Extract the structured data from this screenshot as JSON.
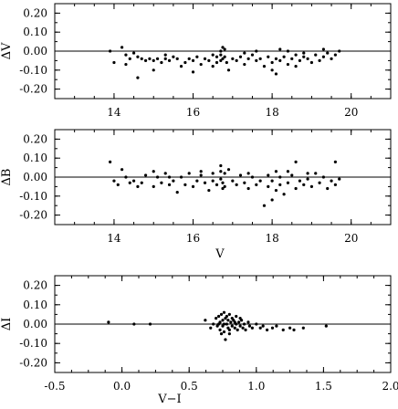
{
  "chart_data": [
    {
      "type": "scatter",
      "xlabel": "",
      "ylabel": "ΔV",
      "xlim": [
        12.5,
        21
      ],
      "ylim": [
        -0.25,
        0.25
      ],
      "xticks": [
        14,
        16,
        18,
        20
      ],
      "xtick_labels": [
        "14",
        "16",
        "18",
        "20"
      ],
      "yticks": [
        0.2,
        0.1,
        0.0,
        -0.1,
        -0.2
      ],
      "ytick_labels": [
        "0.20",
        "0.10",
        "0.00",
        "-0.10",
        "-0.20"
      ],
      "reference_line_y": 0,
      "points": [
        [
          13.9,
          0.0
        ],
        [
          14.0,
          -0.06
        ],
        [
          14.2,
          0.02
        ],
        [
          14.3,
          -0.02
        ],
        [
          14.4,
          -0.04
        ],
        [
          14.5,
          -0.01
        ],
        [
          14.6,
          -0.14
        ],
        [
          14.6,
          -0.03
        ],
        [
          14.7,
          -0.04
        ],
        [
          14.8,
          -0.05
        ],
        [
          14.9,
          -0.04
        ],
        [
          15.0,
          -0.1
        ],
        [
          15.0,
          -0.05
        ],
        [
          15.1,
          -0.04
        ],
        [
          15.2,
          -0.06
        ],
        [
          15.3,
          -0.04
        ],
        [
          15.4,
          -0.05
        ],
        [
          15.5,
          -0.03
        ],
        [
          15.6,
          -0.04
        ],
        [
          15.7,
          -0.08
        ],
        [
          15.8,
          -0.06
        ],
        [
          15.9,
          -0.04
        ],
        [
          16.0,
          -0.11
        ],
        [
          16.0,
          -0.05
        ],
        [
          16.1,
          -0.03
        ],
        [
          16.2,
          -0.07
        ],
        [
          16.3,
          -0.04
        ],
        [
          16.4,
          -0.05
        ],
        [
          16.5,
          -0.02
        ],
        [
          16.5,
          -0.08
        ],
        [
          16.6,
          -0.03
        ],
        [
          16.6,
          -0.06
        ],
        [
          16.7,
          0.0
        ],
        [
          16.7,
          -0.02
        ],
        [
          16.7,
          -0.05
        ],
        [
          16.75,
          0.02
        ],
        [
          16.75,
          -0.04
        ],
        [
          16.8,
          0.01
        ],
        [
          16.8,
          -0.03
        ],
        [
          16.85,
          -0.06
        ],
        [
          16.9,
          -0.1
        ],
        [
          17.0,
          -0.04
        ],
        [
          17.1,
          -0.05
        ],
        [
          17.2,
          -0.03
        ],
        [
          17.3,
          -0.07
        ],
        [
          17.4,
          -0.04
        ],
        [
          17.5,
          -0.02
        ],
        [
          17.6,
          -0.05
        ],
        [
          17.7,
          -0.04
        ],
        [
          17.8,
          -0.08
        ],
        [
          17.9,
          -0.03
        ],
        [
          18.0,
          -0.06
        ],
        [
          18.0,
          -0.1
        ],
        [
          18.1,
          -0.04
        ],
        [
          18.1,
          -0.12
        ],
        [
          18.2,
          -0.05
        ],
        [
          18.3,
          -0.03
        ],
        [
          18.4,
          -0.07
        ],
        [
          18.5,
          -0.04
        ],
        [
          18.6,
          -0.02
        ],
        [
          18.6,
          -0.08
        ],
        [
          18.7,
          -0.05
        ],
        [
          18.8,
          -0.03
        ],
        [
          18.9,
          -0.04
        ],
        [
          19.0,
          -0.06
        ],
        [
          19.1,
          -0.02
        ],
        [
          19.2,
          -0.05
        ],
        [
          19.3,
          -0.03
        ],
        [
          19.4,
          -0.01
        ],
        [
          19.5,
          -0.04
        ],
        [
          19.6,
          -0.02
        ],
        [
          19.7,
          0.0
        ],
        [
          18.2,
          0.01
        ],
        [
          18.4,
          0.0
        ],
        [
          18.8,
          -0.01
        ],
        [
          19.3,
          0.01
        ],
        [
          17.6,
          0.0
        ],
        [
          17.3,
          -0.01
        ],
        [
          15.3,
          -0.02
        ],
        [
          14.3,
          -0.07
        ]
      ]
    },
    {
      "type": "scatter",
      "xlabel": "V",
      "ylabel": "ΔB",
      "xlim": [
        12.5,
        21
      ],
      "ylim": [
        -0.25,
        0.25
      ],
      "xticks": [
        14,
        16,
        18,
        20
      ],
      "xtick_labels": [
        "14",
        "16",
        "18",
        "20"
      ],
      "yticks": [
        0.2,
        0.1,
        0.0,
        -0.1,
        -0.2
      ],
      "ytick_labels": [
        "0.20",
        "0.10",
        "0.00",
        "-0.10",
        "-0.20"
      ],
      "reference_line_y": 0,
      "points": [
        [
          13.9,
          0.08
        ],
        [
          14.0,
          -0.02
        ],
        [
          14.1,
          -0.04
        ],
        [
          14.2,
          0.04
        ],
        [
          14.3,
          0.0
        ],
        [
          14.5,
          -0.02
        ],
        [
          14.6,
          -0.05
        ],
        [
          14.7,
          -0.03
        ],
        [
          14.8,
          0.01
        ],
        [
          15.0,
          0.03
        ],
        [
          15.0,
          -0.05
        ],
        [
          15.1,
          0.0
        ],
        [
          15.2,
          -0.03
        ],
        [
          15.3,
          0.02
        ],
        [
          15.4,
          -0.04
        ],
        [
          15.5,
          -0.02
        ],
        [
          15.6,
          -0.08
        ],
        [
          15.7,
          0.0
        ],
        [
          15.8,
          -0.04
        ],
        [
          15.9,
          0.02
        ],
        [
          16.0,
          -0.05
        ],
        [
          16.1,
          -0.02
        ],
        [
          16.2,
          0.01
        ],
        [
          16.3,
          -0.03
        ],
        [
          16.4,
          -0.07
        ],
        [
          16.5,
          0.02
        ],
        [
          16.5,
          -0.02
        ],
        [
          16.6,
          -0.04
        ],
        [
          16.7,
          0.06
        ],
        [
          16.7,
          0.03
        ],
        [
          16.7,
          -0.01
        ],
        [
          16.75,
          -0.03
        ],
        [
          16.75,
          -0.06
        ],
        [
          16.8,
          0.02
        ],
        [
          16.8,
          -0.05
        ],
        [
          16.9,
          0.04
        ],
        [
          17.0,
          -0.02
        ],
        [
          17.1,
          -0.04
        ],
        [
          17.2,
          0.01
        ],
        [
          17.3,
          -0.03
        ],
        [
          17.4,
          -0.06
        ],
        [
          17.5,
          0.0
        ],
        [
          17.6,
          -0.04
        ],
        [
          17.7,
          -0.02
        ],
        [
          17.8,
          -0.15
        ],
        [
          17.9,
          -0.05
        ],
        [
          18.0,
          -0.12
        ],
        [
          18.0,
          -0.02
        ],
        [
          18.1,
          -0.07
        ],
        [
          18.1,
          0.03
        ],
        [
          18.2,
          -0.04
        ],
        [
          18.3,
          -0.09
        ],
        [
          18.4,
          -0.03
        ],
        [
          18.5,
          0.01
        ],
        [
          18.6,
          -0.06
        ],
        [
          18.6,
          0.08
        ],
        [
          18.7,
          -0.02
        ],
        [
          18.8,
          -0.04
        ],
        [
          18.9,
          -0.01
        ],
        [
          19.0,
          -0.05
        ],
        [
          19.1,
          0.02
        ],
        [
          19.2,
          -0.03
        ],
        [
          19.3,
          0.0
        ],
        [
          19.4,
          -0.06
        ],
        [
          19.5,
          -0.02
        ],
        [
          19.6,
          0.08
        ],
        [
          19.6,
          -0.04
        ],
        [
          19.7,
          -0.01
        ],
        [
          18.2,
          0.0
        ],
        [
          17.9,
          0.01
        ],
        [
          18.4,
          0.03
        ],
        [
          18.9,
          0.02
        ],
        [
          17.4,
          0.02
        ],
        [
          16.2,
          0.03
        ],
        [
          15.4,
          0.0
        ],
        [
          14.4,
          -0.03
        ]
      ]
    },
    {
      "type": "scatter",
      "xlabel": "V−I",
      "ylabel": "ΔI",
      "xlim": [
        -0.5,
        2.0
      ],
      "ylim": [
        -0.25,
        0.25
      ],
      "xticks": [
        -0.5,
        0.0,
        0.5,
        1.0,
        1.5,
        2.0
      ],
      "xtick_labels": [
        "-0.5",
        "0.0",
        "0.5",
        "1.0",
        "1.5",
        "2.0"
      ],
      "yticks": [
        0.2,
        0.1,
        0.0,
        -0.1,
        -0.2
      ],
      "ytick_labels": [
        "0.20",
        "0.10",
        "0.00",
        "-0.10",
        "-0.20"
      ],
      "reference_line_y": 0,
      "points": [
        [
          -0.1,
          0.01
        ],
        [
          0.09,
          0.0
        ],
        [
          0.21,
          0.0
        ],
        [
          0.62,
          0.02
        ],
        [
          0.66,
          -0.02
        ],
        [
          0.68,
          0.0
        ],
        [
          0.7,
          0.03
        ],
        [
          0.71,
          -0.01
        ],
        [
          0.72,
          0.04
        ],
        [
          0.73,
          0.01
        ],
        [
          0.73,
          -0.03
        ],
        [
          0.74,
          0.05
        ],
        [
          0.75,
          0.02
        ],
        [
          0.75,
          -0.01
        ],
        [
          0.76,
          0.06
        ],
        [
          0.76,
          -0.04
        ],
        [
          0.77,
          0.03
        ],
        [
          0.77,
          -0.08
        ],
        [
          0.78,
          0.0
        ],
        [
          0.78,
          0.04
        ],
        [
          0.79,
          -0.02
        ],
        [
          0.79,
          0.02
        ],
        [
          0.8,
          0.05
        ],
        [
          0.8,
          -0.03
        ],
        [
          0.81,
          0.01
        ],
        [
          0.82,
          -0.01
        ],
        [
          0.82,
          0.03
        ],
        [
          0.83,
          0.02
        ],
        [
          0.84,
          -0.02
        ],
        [
          0.85,
          0.0
        ],
        [
          0.85,
          0.04
        ],
        [
          0.86,
          -0.03
        ],
        [
          0.87,
          0.01
        ],
        [
          0.88,
          -0.01
        ],
        [
          0.89,
          0.02
        ],
        [
          0.9,
          -0.02
        ],
        [
          0.91,
          0.0
        ],
        [
          0.92,
          -0.03
        ],
        [
          0.94,
          0.01
        ],
        [
          0.95,
          -0.01
        ],
        [
          0.97,
          -0.02
        ],
        [
          1.0,
          0.0
        ],
        [
          1.03,
          -0.02
        ],
        [
          1.05,
          -0.01
        ],
        [
          1.08,
          -0.03
        ],
        [
          1.12,
          -0.02
        ],
        [
          1.15,
          -0.01
        ],
        [
          1.2,
          -0.03
        ],
        [
          1.25,
          -0.02
        ],
        [
          1.28,
          -0.03
        ],
        [
          1.35,
          -0.02
        ],
        [
          1.52,
          -0.01
        ],
        [
          0.74,
          -0.05
        ],
        [
          0.8,
          -0.05
        ],
        [
          0.72,
          0.0
        ],
        [
          0.76,
          0.0
        ],
        [
          0.84,
          0.01
        ],
        [
          0.88,
          0.03
        ]
      ]
    }
  ]
}
